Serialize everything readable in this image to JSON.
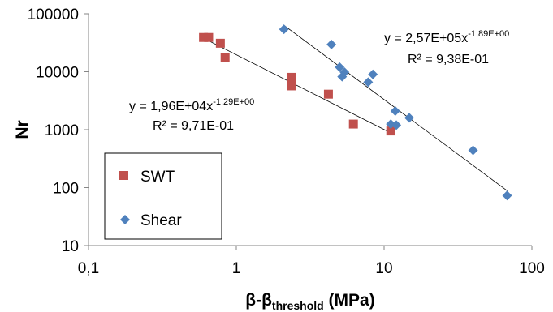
{
  "chart_data": {
    "type": "scatter",
    "title": "",
    "xlabel": {
      "main": "β-β",
      "sub": "threshold",
      "unit": " (MPa)"
    },
    "ylabel": "Nr",
    "xscale": "log",
    "yscale": "log",
    "xlim": [
      0.1,
      100
    ],
    "ylim": [
      10,
      100000
    ],
    "xticks": [
      0.1,
      1,
      10,
      100
    ],
    "xtick_labels": [
      "0,1",
      "1",
      "10",
      "100"
    ],
    "yticks": [
      10,
      100,
      1000,
      10000,
      100000
    ],
    "ytick_labels": [
      "10",
      "100",
      "1000",
      "10000",
      "100000"
    ],
    "grid": false,
    "legend_position": "bottom-left",
    "series": [
      {
        "name": "SWT",
        "color": "#c0504d",
        "marker": "square",
        "points": [
          [
            0.6,
            39000
          ],
          [
            0.65,
            39000
          ],
          [
            0.78,
            31000
          ],
          [
            0.84,
            17500
          ],
          [
            2.35,
            8000
          ],
          [
            2.35,
            5700
          ],
          [
            4.2,
            4100
          ],
          [
            6.2,
            1250
          ],
          [
            11.1,
            950
          ]
        ],
        "trendline": {
          "type": "power",
          "a": 19600,
          "b": -1.29,
          "x_range": [
            0.6,
            11.1
          ]
        },
        "equation": {
          "prefix": "y = 1,96E+04x",
          "exponent": "-1,29E+00",
          "r2": "R² = 9,71E-01"
        }
      },
      {
        "name": "Shear",
        "color": "#4f81bd",
        "marker": "diamond",
        "points": [
          [
            2.1,
            54000
          ],
          [
            4.4,
            29500
          ],
          [
            5.0,
            12000
          ],
          [
            5.2,
            8200
          ],
          [
            5.4,
            9800
          ],
          [
            7.8,
            6600
          ],
          [
            8.4,
            9000
          ],
          [
            11.1,
            1250
          ],
          [
            11.9,
            2100
          ],
          [
            12.1,
            1200
          ],
          [
            14.8,
            1600
          ],
          [
            40.0,
            440
          ],
          [
            68.0,
            73
          ]
        ],
        "trendline": {
          "type": "power",
          "a": 257000,
          "b": -1.89,
          "x_range": [
            2.1,
            68.0
          ]
        },
        "equation": {
          "prefix": "y = 2,57E+05x",
          "exponent": "-1,89E+00",
          "r2": "R² = 9,38E-01"
        }
      }
    ]
  }
}
